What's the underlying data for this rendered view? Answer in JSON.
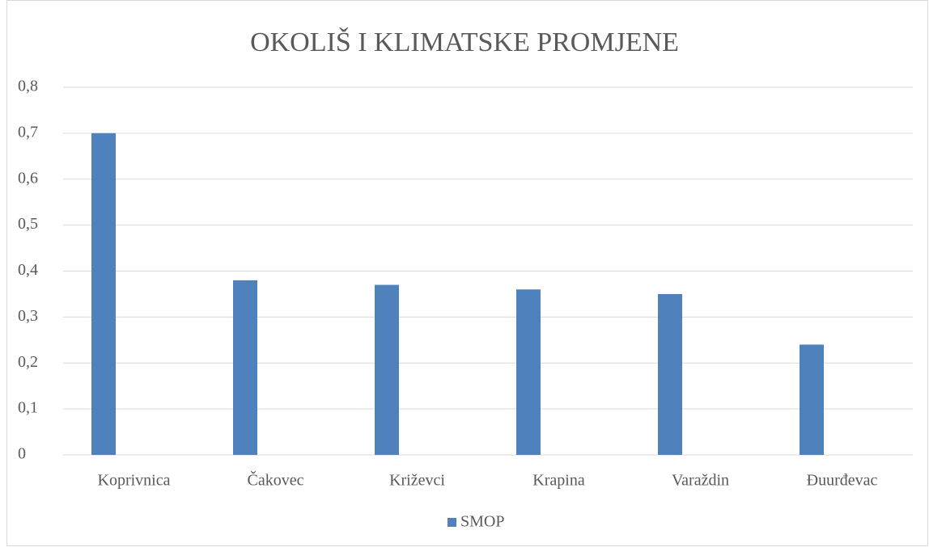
{
  "chart_data": {
    "type": "bar",
    "title": "OKOLIŠ I KLIMATSKE PROMJENE",
    "categories": [
      "Koprivnica",
      "Čakovec",
      "Križevci",
      "Krapina",
      "Varaždin",
      "Đuurđevac"
    ],
    "series": [
      {
        "name": "SMOP",
        "color": "#4f81bd",
        "values": [
          0.7,
          0.38,
          0.37,
          0.36,
          0.35,
          0.24
        ]
      }
    ],
    "ylim": [
      0,
      0.8
    ],
    "yticks": [
      0,
      {
        "value": 0.1,
        "label": "0,1"
      },
      {
        "value": 0.2,
        "label": "0,2"
      },
      {
        "value": 0.3,
        "label": "0,3"
      },
      {
        "value": 0.4,
        "label": "0,4"
      },
      {
        "value": 0.5,
        "label": "0,5"
      },
      {
        "value": 0.6,
        "label": "0,6"
      },
      {
        "value": 0.7,
        "label": "0,7"
      },
      {
        "value": 0.8,
        "label": "0,8"
      }
    ],
    "grid": true,
    "legend": "bottom"
  }
}
